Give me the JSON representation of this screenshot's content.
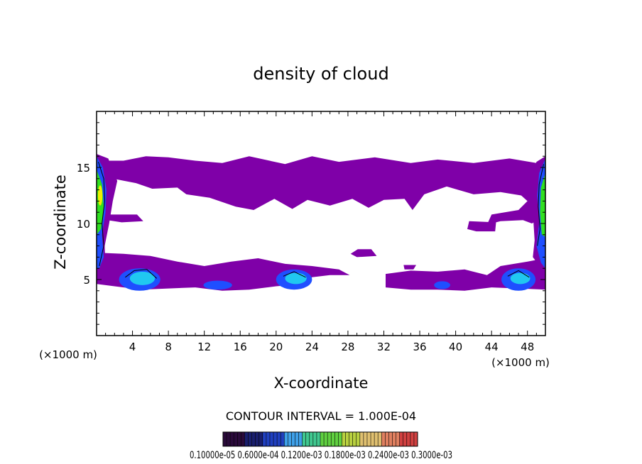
{
  "chart_data": {
    "type": "heatmap",
    "title": "density of cloud",
    "xlabel": "X-coordinate",
    "ylabel": "Z-coordinate",
    "x_unit": "(×1000 m)",
    "y_unit": "(×1000 m)",
    "xlim": [
      0,
      50
    ],
    "ylim": [
      0,
      20
    ],
    "x_ticks": [
      4,
      8,
      12,
      16,
      20,
      24,
      28,
      32,
      36,
      40,
      44,
      48
    ],
    "y_ticks": [
      5,
      10,
      15
    ],
    "contour_interval_label": "CONTOUR INTERVAL = 1.000E-04",
    "colorbar_labels": "0.10000e-05 0.6000e-04 0.1200e-03 0.1800e-03 0.2400e-03 0.3000e-03",
    "colors": {
      "thin_cloud": "#7f00a8",
      "blue": "#1f4fff",
      "cyan": "#20c8f0",
      "green": "#30e020",
      "yellow": "#f0f000",
      "colorbar": [
        "#2a0a3a",
        "#1a1f6e",
        "#2040c0",
        "#3fa0e8",
        "#40c890",
        "#60d040",
        "#b8d040",
        "#e0c070",
        "#e08060",
        "#d04040"
      ]
    },
    "regions": [
      {
        "level": "thin",
        "x": [
          0,
          50
        ],
        "z": [
          14.5,
          16
        ],
        "note": "upper cloud layer top band"
      },
      {
        "level": "thin",
        "x": [
          9.5,
          50
        ],
        "z": [
          11,
          14.5
        ],
        "note": "upper cloud layer body"
      },
      {
        "level": "thin",
        "x": [
          0,
          50
        ],
        "z": [
          4,
          7.5
        ],
        "note": "lower cloud layer"
      },
      {
        "level": "high",
        "x": [
          0,
          1.5
        ],
        "z": [
          5,
          16
        ],
        "note": "left boundary core"
      },
      {
        "level": "high",
        "x": [
          48.5,
          50
        ],
        "z": [
          5,
          16
        ],
        "note": "right boundary core"
      },
      {
        "level": "mid",
        "x": [
          2.5,
          7.5
        ],
        "z": [
          4,
          6
        ],
        "note": "cell near x=5"
      },
      {
        "level": "mid",
        "x": [
          20,
          24
        ],
        "z": [
          4,
          6
        ],
        "note": "cell near x=22"
      },
      {
        "level": "mid",
        "x": [
          45,
          49
        ],
        "z": [
          4,
          6
        ],
        "note": "cell near x=47"
      }
    ]
  }
}
